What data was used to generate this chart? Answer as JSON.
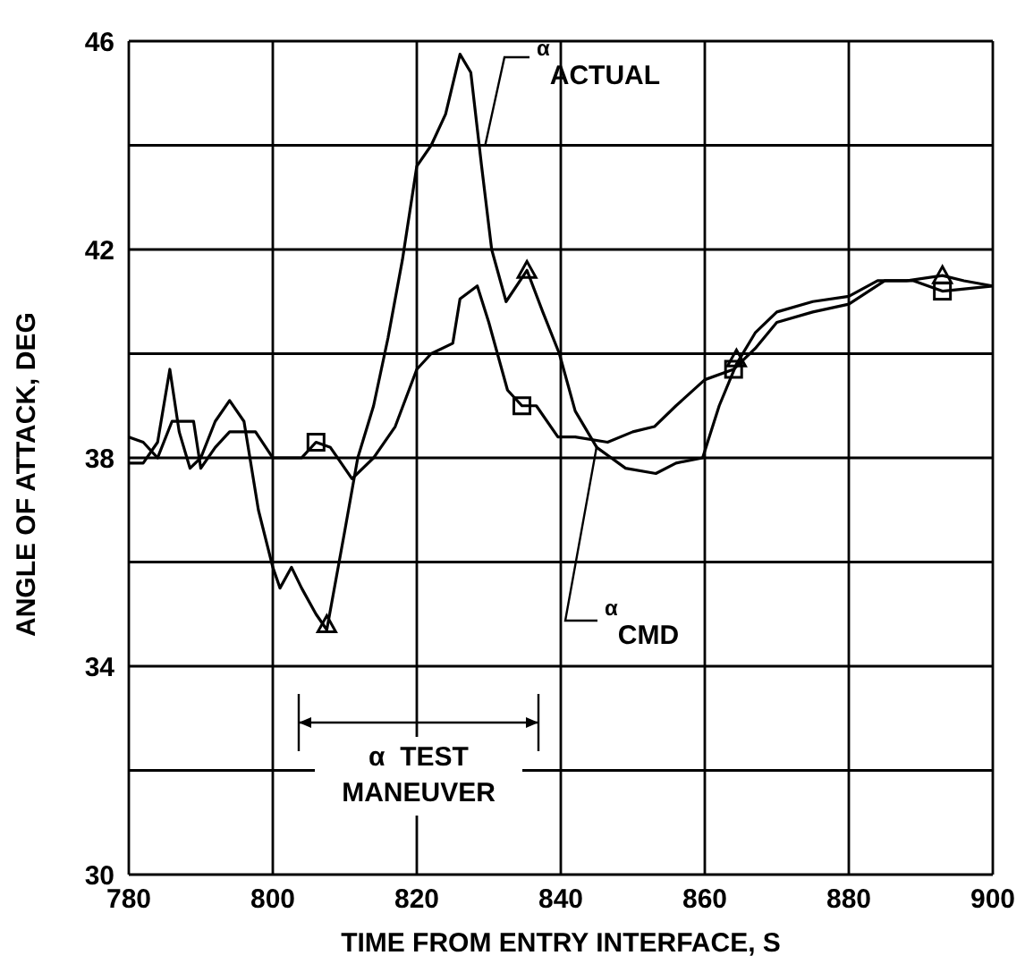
{
  "chart_data": {
    "type": "line",
    "xlabel": "TIME FROM ENTRY INTERFACE, S",
    "ylabel": "ANGLE OF ATTACK, DEG",
    "xlim": [
      780,
      900
    ],
    "xticks": [
      780,
      800,
      820,
      840,
      860,
      880,
      900
    ],
    "ylim": [
      30,
      46
    ],
    "yticks": [
      30,
      {
        "value": 32,
        "label": null
      },
      34,
      {
        "value": 36,
        "label": null
      },
      38,
      {
        "value": 40,
        "label": null
      },
      42,
      {
        "value": 44,
        "label": null
      },
      46
    ],
    "grid": true,
    "line_style": "solid",
    "marker": "none",
    "series": [
      {
        "name": "$^{α}$$_{ACTUAL}$",
        "type": "line",
        "color": "#000000",
        "x": [
          780,
          782,
          784,
          785.7,
          787,
          788.5,
          790,
          792,
          794,
          796,
          798,
          800,
          801,
          802.6,
          804,
          806,
          807.5,
          810,
          811.8,
          814,
          816,
          818,
          820,
          822,
          824,
          826,
          827.5,
          829,
          830.4,
          832.4,
          835.3,
          837.5,
          839.8,
          842,
          845,
          849,
          853.2,
          856,
          859.7,
          862,
          864.4,
          867,
          870,
          875,
          880,
          884,
          888,
          893,
          896,
          900
        ],
        "values": [
          37.9,
          37.9,
          38.3,
          39.7,
          38.5,
          37.8,
          38.0,
          38.7,
          39.1,
          38.7,
          37.0,
          35.9,
          35.5,
          35.9,
          35.5,
          35.0,
          34.7,
          36.6,
          38.0,
          39.0,
          40.3,
          41.8,
          43.6,
          44.0,
          44.6,
          45.75,
          45.4,
          43.6,
          42.0,
          41.0,
          41.6,
          40.8,
          40.0,
          38.9,
          38.2,
          37.8,
          37.7,
          37.9,
          38.0,
          39.0,
          39.8,
          40.4,
          40.8,
          41.0,
          41.1,
          41.4,
          41.4,
          41.5,
          41.4,
          41.3
        ]
      },
      {
        "name": "$^{α}$$_{CMD}$",
        "type": "line",
        "color": "#000000",
        "x": [
          780,
          782,
          784,
          786,
          789,
          790,
          792,
          794,
          797.6,
          800,
          804,
          806,
          808,
          811,
          814,
          817,
          820,
          822,
          825,
          826,
          828.4,
          830,
          832.6,
          834.6,
          836.6,
          839.6,
          842,
          846.5,
          850,
          853,
          856,
          860,
          864,
          867,
          870,
          875,
          880,
          885,
          889,
          893,
          900
        ],
        "values": [
          38.4,
          38.3,
          38.0,
          38.7,
          38.7,
          37.8,
          38.2,
          38.5,
          38.5,
          38.0,
          38.0,
          38.3,
          38.2,
          37.6,
          38.0,
          38.6,
          39.7,
          40.0,
          40.2,
          41.05,
          41.3,
          40.6,
          39.3,
          39.0,
          39.0,
          38.4,
          38.4,
          38.3,
          38.5,
          38.6,
          39.0,
          39.5,
          39.7,
          40.1,
          40.6,
          40.8,
          40.95,
          41.4,
          41.4,
          41.2,
          41.3
        ]
      },
      {
        "type": "scatter",
        "marker": "triangle",
        "color": "#000000",
        "x": [
          807.5,
          835.3,
          864.4,
          893
        ],
        "values": [
          34.8,
          41.6,
          39.9,
          41.5
        ]
      },
      {
        "type": "scatter",
        "marker": "square",
        "color": "#000000",
        "x": [
          806,
          834.6,
          864,
          893
        ],
        "values": [
          38.3,
          39.0,
          39.7,
          41.2
        ]
      }
    ],
    "annotations": [
      "α  TEST\nMANEUVER"
    ]
  }
}
